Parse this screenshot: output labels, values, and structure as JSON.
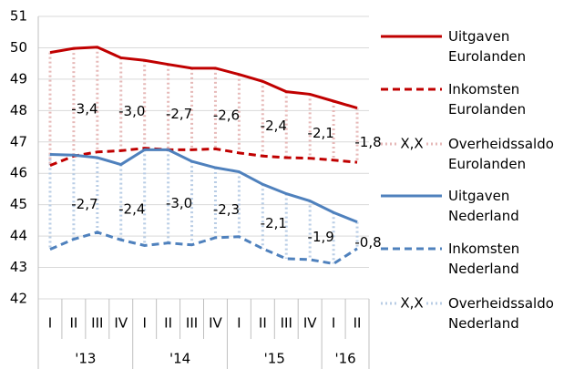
{
  "chart_data": {
    "type": "line",
    "categories": [
      "I",
      "II",
      "III",
      "IV",
      "I",
      "II",
      "III",
      "IV",
      "I",
      "II",
      "III",
      "IV",
      "I",
      "II"
    ],
    "year_groups": [
      "'13",
      "'14",
      "'15",
      "'16"
    ],
    "ylim": [
      42,
      51
    ],
    "yticks": [
      42,
      43,
      44,
      45,
      46,
      47,
      48,
      49,
      50,
      51
    ],
    "grid": true,
    "legend_position": "right",
    "saldo_sample_label": "X,X",
    "series": [
      {
        "name": "Uitgaven Eurolanden",
        "color": "#c00000",
        "style": "solid",
        "values": [
          49.85,
          49.98,
          50.02,
          49.68,
          49.6,
          49.47,
          49.35,
          49.35,
          49.15,
          48.93,
          48.6,
          48.52,
          48.3,
          48.08
        ]
      },
      {
        "name": "Inkomsten Eurolanden",
        "color": "#c00000",
        "style": "dashed",
        "values": [
          46.25,
          46.55,
          46.68,
          46.72,
          46.8,
          46.75,
          46.75,
          46.78,
          46.65,
          46.55,
          46.5,
          46.48,
          46.42,
          46.35
        ]
      },
      {
        "name": "Overheidssaldo Eurolanden",
        "color": "#e6b9b8",
        "style": "saldo",
        "values": [
          null,
          -3.4,
          null,
          -3.0,
          null,
          -2.7,
          null,
          -2.6,
          null,
          -2.4,
          null,
          -2.1,
          null,
          -1.8
        ],
        "value_labels": [
          null,
          "-3,4",
          null,
          "-3,0",
          null,
          "-2,7",
          null,
          "-2,6",
          null,
          "-2,4",
          null,
          "-2,1",
          null,
          "-1,8"
        ]
      },
      {
        "name": "Uitgaven Nederland",
        "color": "#4f81bd",
        "style": "solid",
        "values": [
          46.6,
          46.58,
          46.5,
          46.28,
          46.75,
          46.75,
          46.38,
          46.18,
          46.05,
          45.65,
          45.35,
          45.12,
          44.75,
          44.45
        ]
      },
      {
        "name": "Inkomsten Nederland",
        "color": "#4f81bd",
        "style": "dashed",
        "values": [
          43.58,
          43.9,
          44.12,
          43.88,
          43.7,
          43.78,
          43.72,
          43.95,
          43.98,
          43.6,
          43.28,
          43.25,
          43.12,
          43.6
        ]
      },
      {
        "name": "Overheidssaldo Nederland",
        "color": "#b9cde5",
        "style": "saldo",
        "values": [
          null,
          -2.7,
          null,
          -2.4,
          null,
          -3.0,
          null,
          -2.3,
          null,
          -2.1,
          null,
          -1.9,
          null,
          -0.8
        ],
        "value_labels": [
          null,
          "-2,7",
          null,
          "-2,4",
          null,
          "-3,0",
          null,
          "-2,3",
          null,
          "-2,1",
          null,
          "-1,9",
          null,
          "-0,8"
        ]
      }
    ]
  }
}
